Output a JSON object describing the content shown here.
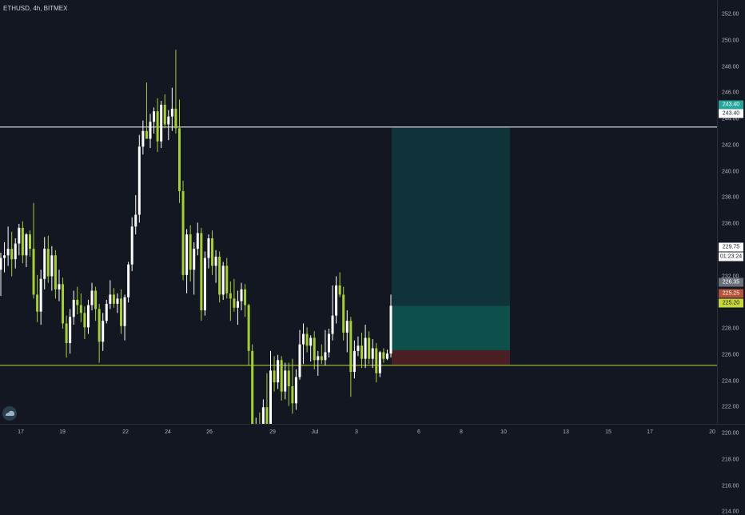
{
  "symbol_label": "ETHUSD, 4h, BITMEX",
  "colors": {
    "background": "#131722",
    "candle_up": "#ffffff",
    "candle_down": "#a6ce39",
    "hline_resistance": "#ffffff",
    "hline_support": "#c7d63a",
    "target_zone": "#10333a",
    "entry_zone": "#0d4f4b",
    "stop_zone": "#4a1f24"
  },
  "price_axis": {
    "ticks": [
      "252.00",
      "250.00",
      "248.00",
      "246.00",
      "244.00",
      "242.00",
      "240.00",
      "238.00",
      "236.00",
      "234.00",
      "232.00",
      "230.00",
      "228.00",
      "226.00",
      "224.00",
      "222.00",
      "220.00",
      "218.00",
      "216.00",
      "214.00"
    ],
    "badges": {
      "target_label": "243.40",
      "resistance_label": "243.40",
      "current_price": "229.75",
      "countdown": "01:23:24",
      "entry_label": "226.35",
      "stop_label": "225.25",
      "support_label": "225.20"
    }
  },
  "time_axis": {
    "ticks": [
      "17",
      "19",
      "22",
      "24",
      "26",
      "29",
      "Jul",
      "3",
      "6",
      "8",
      "10",
      "13",
      "15",
      "17",
      "20"
    ]
  },
  "chart_data": {
    "type": "candlestick",
    "ylim": [
      212.5,
      253
    ],
    "horizontal_lines": [
      243.4,
      225.2
    ],
    "position_tool": {
      "target": 243.4,
      "entry": 226.35,
      "stop": 225.25,
      "current": 229.75
    },
    "candles": [
      [
        232.5,
        233.8,
        230.5,
        233.4
      ],
      [
        233.4,
        234.6,
        232.3,
        233.6
      ],
      [
        233.6,
        235.8,
        232.8,
        234.1
      ],
      [
        234.1,
        235.4,
        232.0,
        233.3
      ],
      [
        233.3,
        234.9,
        232.6,
        234.5
      ],
      [
        234.5,
        236.0,
        233.6,
        235.7
      ],
      [
        235.7,
        236.2,
        233.0,
        233.6
      ],
      [
        233.6,
        235.3,
        232.7,
        235.2
      ],
      [
        235.2,
        235.5,
        233.5,
        234.1
      ],
      [
        234.1,
        237.6,
        230.3,
        230.6
      ],
      [
        230.6,
        232.1,
        228.5,
        229.3
      ],
      [
        229.3,
        232.5,
        228.3,
        231.8
      ],
      [
        231.8,
        235.0,
        231.0,
        234.1
      ],
      [
        234.1,
        235.1,
        231.5,
        232.0
      ],
      [
        232.0,
        234.3,
        230.9,
        233.6
      ],
      [
        233.6,
        234.0,
        230.3,
        231.0
      ],
      [
        231.0,
        232.5,
        230.1,
        231.4
      ],
      [
        231.4,
        231.9,
        228.0,
        228.4
      ],
      [
        228.4,
        229.0,
        225.8,
        226.9
      ],
      [
        226.9,
        229.5,
        226.1,
        228.9
      ],
      [
        228.9,
        230.9,
        228.3,
        230.2
      ],
      [
        230.2,
        231.2,
        229.1,
        229.8
      ],
      [
        229.8,
        230.7,
        228.5,
        229.2
      ],
      [
        229.2,
        229.7,
        227.2,
        228.1
      ],
      [
        228.1,
        230.2,
        227.6,
        229.8
      ],
      [
        229.8,
        231.5,
        229.4,
        230.9
      ],
      [
        230.9,
        231.2,
        228.6,
        229.5
      ],
      [
        229.5,
        229.9,
        225.4,
        227.0
      ],
      [
        227.0,
        229.2,
        226.3,
        228.6
      ],
      [
        228.6,
        230.2,
        228.4,
        229.9
      ],
      [
        229.9,
        231.7,
        229.5,
        230.6
      ],
      [
        230.6,
        231.1,
        229.6,
        229.9
      ],
      [
        229.9,
        230.7,
        229.2,
        230.3
      ],
      [
        230.3,
        231.0,
        227.6,
        228.2
      ],
      [
        228.2,
        230.6,
        227.1,
        230.4
      ],
      [
        230.4,
        233.1,
        230.0,
        232.9
      ],
      [
        232.9,
        236.5,
        232.4,
        235.8
      ],
      [
        235.8,
        238.2,
        235.2,
        236.7
      ],
      [
        236.7,
        242.8,
        236.1,
        241.9
      ],
      [
        241.9,
        243.9,
        241.3,
        243.1
      ],
      [
        243.1,
        246.8,
        242.5,
        242.5
      ],
      [
        242.5,
        244.4,
        241.8,
        243.8
      ],
      [
        243.8,
        244.9,
        242.9,
        244.6
      ],
      [
        244.6,
        245.6,
        241.5,
        242.3
      ],
      [
        242.3,
        245.4,
        241.8,
        245.1
      ],
      [
        245.1,
        245.9,
        243.3,
        243.6
      ],
      [
        243.6,
        244.7,
        242.4,
        244.2
      ],
      [
        244.2,
        246.4,
        243.1,
        244.8
      ],
      [
        244.8,
        249.3,
        242.9,
        243.3
      ],
      [
        243.3,
        245.5,
        237.6,
        238.5
      ],
      [
        238.5,
        239.3,
        231.7,
        232.1
      ],
      [
        232.1,
        235.6,
        230.7,
        235.2
      ],
      [
        235.2,
        235.9,
        231.6,
        232.5
      ],
      [
        232.5,
        234.6,
        230.6,
        234.1
      ],
      [
        234.1,
        236.1,
        233.6,
        235.3
      ],
      [
        235.3,
        235.7,
        228.6,
        229.4
      ],
      [
        229.4,
        233.9,
        229.0,
        233.4
      ],
      [
        233.4,
        235.2,
        232.6,
        234.9
      ],
      [
        234.9,
        235.5,
        232.1,
        232.8
      ],
      [
        232.8,
        234.0,
        231.5,
        233.5
      ],
      [
        233.5,
        233.9,
        230.0,
        230.6
      ],
      [
        230.6,
        233.1,
        230.2,
        232.8
      ],
      [
        232.8,
        233.4,
        230.3,
        230.7
      ],
      [
        230.7,
        231.6,
        228.6,
        230.3
      ],
      [
        230.3,
        231.8,
        229.3,
        229.6
      ],
      [
        229.6,
        230.9,
        228.3,
        230.1
      ],
      [
        230.1,
        231.5,
        229.4,
        231.0
      ],
      [
        231.0,
        231.4,
        228.9,
        229.8
      ],
      [
        229.8,
        229.9,
        225.2,
        226.3
      ],
      [
        226.3,
        226.8,
        217.0,
        217.8
      ],
      [
        217.8,
        221.2,
        216.0,
        220.5
      ],
      [
        220.5,
        221.6,
        217.9,
        218.9
      ],
      [
        218.9,
        222.6,
        218.4,
        222.0
      ],
      [
        222.0,
        224.6,
        219.8,
        220.3
      ],
      [
        220.3,
        226.3,
        219.6,
        224.8
      ],
      [
        224.8,
        225.9,
        223.2,
        223.9
      ],
      [
        223.9,
        226.0,
        223.4,
        225.6
      ],
      [
        225.6,
        225.9,
        222.5,
        223.2
      ],
      [
        223.2,
        225.4,
        222.6,
        224.8
      ],
      [
        224.8,
        225.4,
        222.1,
        223.6
      ],
      [
        223.6,
        225.7,
        221.5,
        222.3
      ],
      [
        222.3,
        224.9,
        221.8,
        224.3
      ],
      [
        224.3,
        227.9,
        224.1,
        226.8
      ],
      [
        226.8,
        228.4,
        225.3,
        227.6
      ],
      [
        227.6,
        228.1,
        226.2,
        226.7
      ],
      [
        226.7,
        227.5,
        225.5,
        227.3
      ],
      [
        227.3,
        227.8,
        224.9,
        225.6
      ],
      [
        225.6,
        226.3,
        224.4,
        225.9
      ],
      [
        225.9,
        226.8,
        225.3,
        225.6
      ],
      [
        225.6,
        227.9,
        225.2,
        226.2
      ],
      [
        226.2,
        228.0,
        225.8,
        227.6
      ],
      [
        227.6,
        231.3,
        227.1,
        229.0
      ],
      [
        229.0,
        232.0,
        228.4,
        231.3
      ],
      [
        231.3,
        232.3,
        230.4,
        230.6
      ],
      [
        230.6,
        231.2,
        227.1,
        227.7
      ],
      [
        227.7,
        229.4,
        226.2,
        228.6
      ],
      [
        228.6,
        228.9,
        222.8,
        224.7
      ],
      [
        224.7,
        227.1,
        224.2,
        226.3
      ],
      [
        226.3,
        227.4,
        225.9,
        226.7
      ],
      [
        226.7,
        227.7,
        225.0,
        225.7
      ],
      [
        225.7,
        228.3,
        225.0,
        227.3
      ],
      [
        227.3,
        227.8,
        225.3,
        225.7
      ],
      [
        225.7,
        227.2,
        225.0,
        226.5
      ],
      [
        226.5,
        226.9,
        223.9,
        224.6
      ],
      [
        224.6,
        226.3,
        224.3,
        226.2
      ],
      [
        226.2,
        226.5,
        225.4,
        225.7
      ],
      [
        225.7,
        226.4,
        225.6,
        226.1
      ],
      [
        226.1,
        230.6,
        225.8,
        229.75
      ]
    ]
  }
}
